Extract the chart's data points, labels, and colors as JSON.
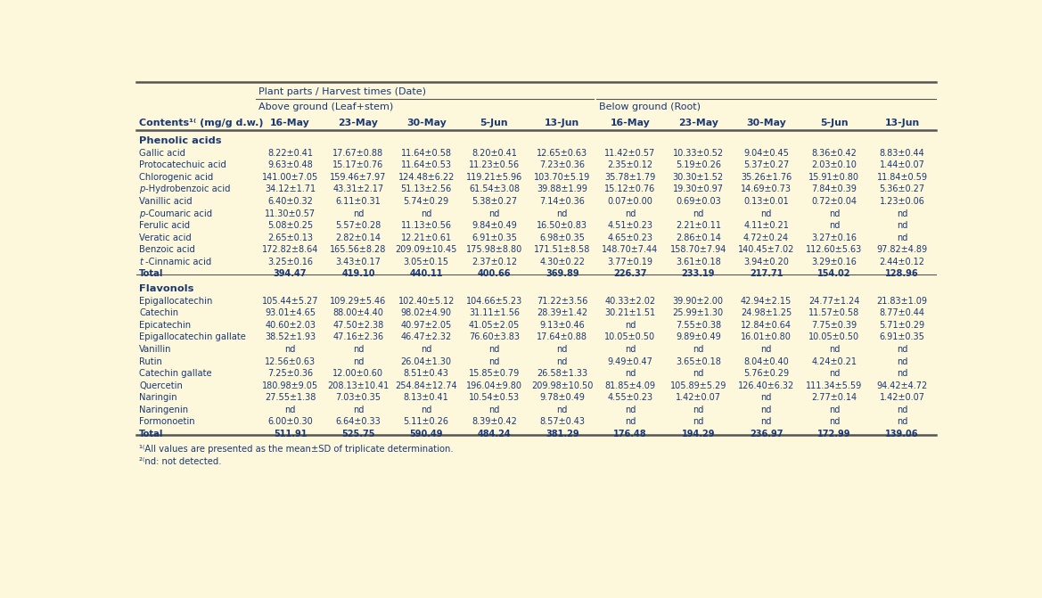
{
  "background_color": "#fdf8dc",
  "header1": "Plant parts / Harvest times (Date)",
  "header2_left": "Above ground (Leaf+stem)",
  "header2_right": "Below ground (Root)",
  "dates": [
    "16-May",
    "23-May",
    "30-May",
    "5-Jun",
    "13-Jun",
    "16-May",
    "23-May",
    "30-May",
    "5-Jun",
    "13-Jun"
  ],
  "section1_title": "Phenolic acids",
  "section2_title": "Flavonols",
  "rows_phenolic": [
    [
      "Gallic acid",
      "8.22±0.41",
      "17.67±0.88",
      "11.64±0.58",
      "8.20±0.41",
      "12.65±0.63",
      "11.42±0.57",
      "10.33±0.52",
      "9.04±0.45",
      "8.36±0.42",
      "8.83±0.44"
    ],
    [
      "Protocatechuic acid",
      "9.63±0.48",
      "15.17±0.76",
      "11.64±0.53",
      "11.23±0.56",
      "7.23±0.36",
      "2.35±0.12",
      "5.19±0.26",
      "5.37±0.27",
      "2.03±0.10",
      "1.44±0.07"
    ],
    [
      "Chlorogenic acid",
      "141.00±7.05",
      "159.46±7.97",
      "124.48±6.22",
      "119.21±5.96",
      "103.70±5.19",
      "35.78±1.79",
      "30.30±1.52",
      "35.26±1.76",
      "15.91±0.80",
      "11.84±0.59"
    ],
    [
      "p-Hydrobenzoic acid",
      "34.12±1.71",
      "43.31±2.17",
      "51.13±2.56",
      "61.54±3.08",
      "39.88±1.99",
      "15.12±0.76",
      "19.30±0.97",
      "14.69±0.73",
      "7.84±0.39",
      "5.36±0.27"
    ],
    [
      "Vanillic acid",
      "6.40±0.32",
      "6.11±0.31",
      "5.74±0.29",
      "5.38±0.27",
      "7.14±0.36",
      "0.07±0.00",
      "0.69±0.03",
      "0.13±0.01",
      "0.72±0.04",
      "1.23±0.06"
    ],
    [
      "p-Coumaric acid",
      "11.30±0.57",
      "nd",
      "nd",
      "nd",
      "nd",
      "nd",
      "nd",
      "nd",
      "nd",
      "nd"
    ],
    [
      "Ferulic acid",
      "5.08±0.25",
      "5.57±0.28",
      "11.13±0.56",
      "9.84±0.49",
      "16.50±0.83",
      "4.51±0.23",
      "2.21±0.11",
      "4.11±0.21",
      "nd",
      "nd"
    ],
    [
      "Veratic acid",
      "2.65±0.13",
      "2.82±0.14",
      "12.21±0.61",
      "6.91±0.35",
      "6.98±0.35",
      "4.65±0.23",
      "2.86±0.14",
      "4.72±0.24",
      "3.27±0.16",
      "nd"
    ],
    [
      "Benzoic acid",
      "172.82±8.64",
      "165.56±8.28",
      "209.09±10.45",
      "175.98±8.80",
      "171.51±8.58",
      "148.70±7.44",
      "158.70±7.94",
      "140.45±7.02",
      "112.60±5.63",
      "97.82±4.89"
    ],
    [
      "t-Cinnamic acid",
      "3.25±0.16",
      "3.43±0.17",
      "3.05±0.15",
      "2.37±0.12",
      "4.30±0.22",
      "3.77±0.19",
      "3.61±0.18",
      "3.94±0.20",
      "3.29±0.16",
      "2.44±0.12"
    ],
    [
      "Total",
      "394.47",
      "419.10",
      "440.11",
      "400.66",
      "369.89",
      "226.37",
      "233.19",
      "217.71",
      "154.02",
      "128.96"
    ]
  ],
  "rows_flavonol": [
    [
      "Epigallocatechin",
      "105.44±5.27",
      "109.29±5.46",
      "102.40±5.12",
      "104.66±5.23",
      "71.22±3.56",
      "40.33±2.02",
      "39.90±2.00",
      "42.94±2.15",
      "24.77±1.24",
      "21.83±1.09"
    ],
    [
      "Catechin",
      "93.01±4.65",
      "88.00±4.40",
      "98.02±4.90",
      "31.11±1.56",
      "28.39±1.42",
      "30.21±1.51",
      "25.99±1.30",
      "24.98±1.25",
      "11.57±0.58",
      "8.77±0.44"
    ],
    [
      "Epicatechin",
      "40.60±2.03",
      "47.50±2.38",
      "40.97±2.05",
      "41.05±2.05",
      "9.13±0.46",
      "nd",
      "7.55±0.38",
      "12.84±0.64",
      "7.75±0.39",
      "5.71±0.29"
    ],
    [
      "Epigallocatechin gallate",
      "38.52±1.93",
      "47.16±2.36",
      "46.47±2.32",
      "76.60±3.83",
      "17.64±0.88",
      "10.05±0.50",
      "9.89±0.49",
      "16.01±0.80",
      "10.05±0.50",
      "6.91±0.35"
    ],
    [
      "Vanillin",
      "nd",
      "nd",
      "nd",
      "nd",
      "nd",
      "nd",
      "nd",
      "nd",
      "nd",
      "nd"
    ],
    [
      "Rutin",
      "12.56±0.63",
      "nd",
      "26.04±1.30",
      "nd",
      "nd",
      "9.49±0.47",
      "3.65±0.18",
      "8.04±0.40",
      "4.24±0.21",
      "nd"
    ],
    [
      "Catechin gallate",
      "7.25±0.36",
      "12.00±0.60",
      "8.51±0.43",
      "15.85±0.79",
      "26.58±1.33",
      "nd",
      "nd",
      "5.76±0.29",
      "nd",
      "nd"
    ],
    [
      "Quercetin",
      "180.98±9.05",
      "208.13±10.41",
      "254.84±12.74",
      "196.04±9.80",
      "209.98±10.50",
      "81.85±4.09",
      "105.89±5.29",
      "126.40±6.32",
      "111.34±5.59",
      "94.42±4.72"
    ],
    [
      "Naringin",
      "27.55±1.38",
      "7.03±0.35",
      "8.13±0.41",
      "10.54±0.53",
      "9.78±0.49",
      "4.55±0.23",
      "1.42±0.07",
      "nd",
      "2.77±0.14",
      "1.42±0.07"
    ],
    [
      "Naringenin",
      "nd",
      "nd",
      "nd",
      "nd",
      "nd",
      "nd",
      "nd",
      "nd",
      "nd",
      "nd"
    ],
    [
      "Formonoetin",
      "6.00±0.30",
      "6.64±0.33",
      "5.11±0.26",
      "8.39±0.42",
      "8.57±0.43",
      "nd",
      "nd",
      "nd",
      "nd",
      "nd"
    ],
    [
      "Total",
      "511.91",
      "525.75",
      "590.49",
      "484.24",
      "381.29",
      "176.48",
      "194.29",
      "236.97",
      "172.99",
      "139.06"
    ]
  ],
  "footnote1": "¹⧽All values are presented as the mean±SD of triplicate determination.",
  "footnote2": "²⧽nd: not detected.",
  "text_color": "#1a3875",
  "line_color": "#555555"
}
